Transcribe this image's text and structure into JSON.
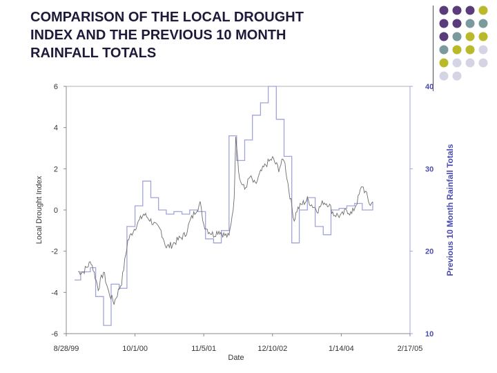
{
  "slide": {
    "title_lines": [
      "COMPARISON OF THE LOCAL DROUGHT",
      "INDEX AND THE PREVIOUS  10 MONTH",
      "RAINFALL TOTALS"
    ]
  },
  "colors": {
    "title": "#1d1a3a",
    "purple": "#5b3c7a",
    "teal": "#7a9a9e",
    "olive": "#b9b92a",
    "lavender": "#d4d4e4",
    "drought_line": "#6c6c6c",
    "rainfall_line": "#a0a3dc",
    "right_axis": "#4b4bb0"
  },
  "decoration": {
    "dot_grid": [
      [
        "purple",
        "purple",
        "purple",
        "olive"
      ],
      [
        "purple",
        "purple",
        "teal",
        "teal"
      ],
      [
        "purple",
        "teal",
        "olive",
        "olive"
      ],
      [
        "teal",
        "olive",
        "olive",
        "lavender"
      ],
      [
        "olive",
        "lavender",
        "lavender",
        "lavender"
      ],
      [
        "lavender",
        "lavender",
        "",
        ""
      ]
    ]
  },
  "chart_data": {
    "type": "line",
    "xlabel": "Date",
    "ylabel": "Local Drought Index",
    "y2label": "Previous 10 Month Rainfall Totals",
    "x_ticks": [
      "8/28/99",
      "10/1/00",
      "11/5/01",
      "12/10/02",
      "1/14/04",
      "2/17/05"
    ],
    "x_range": [
      "1999-08-28",
      "2005-02-17"
    ],
    "ylim": [
      -6,
      6
    ],
    "y_ticks": [
      "6",
      "4",
      "2",
      "0",
      "-2",
      "-4",
      "-6"
    ],
    "y2lim": [
      10,
      40
    ],
    "y2_ticks": [
      "40",
      "30",
      "20",
      "10"
    ],
    "series": [
      {
        "axis": "left",
        "style": "noisy-line",
        "x": [
          "1999-11-05",
          "1999-12-05",
          "2000-01-20",
          "2000-03-01",
          "2000-04-01",
          "2000-05-01",
          "2000-06-01",
          "2000-07-15",
          "2000-08-20",
          "2000-09-20",
          "2000-10-20",
          "2000-11-20",
          "2000-12-20",
          "2001-02-01",
          "2001-03-01",
          "2001-04-01",
          "2001-05-01",
          "2001-06-15",
          "2001-07-20",
          "2001-08-20",
          "2001-09-20",
          "2001-10-15",
          "2001-11-05",
          "2001-12-01",
          "2002-01-01",
          "2002-02-01",
          "2002-03-01",
          "2002-04-01",
          "2002-05-01",
          "2002-05-10",
          "2002-06-01",
          "2002-07-01",
          "2002-08-01",
          "2002-09-01",
          "2002-10-01",
          "2002-11-01",
          "2002-12-10",
          "2003-01-15",
          "2003-02-15",
          "2003-03-15",
          "2003-04-15",
          "2003-05-01",
          "2003-06-01",
          "2003-07-01",
          "2003-08-01",
          "2003-09-01",
          "2003-10-01",
          "2003-11-01",
          "2003-12-01",
          "2004-01-14",
          "2004-02-15",
          "2004-03-15",
          "2004-04-15",
          "2004-05-15",
          "2004-06-15",
          "2004-07-01",
          "2004-07-15"
        ],
        "values": [
          -3.0,
          -3.0,
          -2.5,
          -3.8,
          -3.0,
          -4.0,
          -4.5,
          -3.5,
          -1.5,
          -1.0,
          -0.6,
          -0.2,
          -0.4,
          -0.8,
          -1.0,
          -1.8,
          -1.7,
          -1.4,
          -1.2,
          -0.5,
          0.0,
          0.3,
          -0.7,
          -1.0,
          -1.2,
          -1.0,
          -1.2,
          -1.3,
          0.5,
          3.7,
          1.5,
          1.0,
          1.6,
          1.2,
          1.8,
          2.2,
          2.5,
          2.0,
          2.5,
          1.0,
          -0.5,
          0.0,
          0.3,
          0.5,
          0.2,
          0.0,
          0.4,
          0.3,
          -0.2,
          -0.3,
          0.0,
          -0.2,
          0.4,
          1.2,
          0.6,
          0.2,
          0.4
        ]
      },
      {
        "axis": "right",
        "style": "step-line",
        "x": [
          "1999-10-15",
          "1999-11-20",
          "2000-01-15",
          "2000-02-15",
          "2000-04-01",
          "2000-05-15",
          "2000-07-01",
          "2000-08-15",
          "2000-10-01",
          "2000-11-15",
          "2001-01-01",
          "2001-02-15",
          "2001-04-01",
          "2001-05-15",
          "2001-07-01",
          "2001-08-15",
          "2001-10-01",
          "2001-11-15",
          "2002-01-01",
          "2002-02-15",
          "2002-04-01",
          "2002-05-15",
          "2002-07-01",
          "2002-08-15",
          "2002-10-01",
          "2002-11-15",
          "2003-01-01",
          "2003-02-15",
          "2003-04-01",
          "2003-05-15",
          "2003-07-01",
          "2003-08-15",
          "2003-10-01",
          "2003-11-15",
          "2004-01-01",
          "2004-02-15",
          "2004-04-01",
          "2004-05-15",
          "2004-07-15"
        ],
        "values": [
          16.5,
          17.5,
          18.0,
          14.5,
          11.0,
          16.0,
          15.5,
          23.0,
          25.5,
          28.5,
          26.5,
          25.0,
          24.5,
          24.8,
          24.5,
          25.0,
          24.8,
          21.5,
          21.0,
          22.5,
          34.0,
          31.0,
          33.5,
          36.5,
          38.0,
          40.0,
          36.0,
          31.5,
          21.0,
          25.0,
          26.5,
          23.0,
          22.0,
          25.0,
          25.2,
          25.5,
          25.8,
          25.0,
          26.0
        ]
      }
    ],
    "grid": false,
    "legend": "none"
  }
}
